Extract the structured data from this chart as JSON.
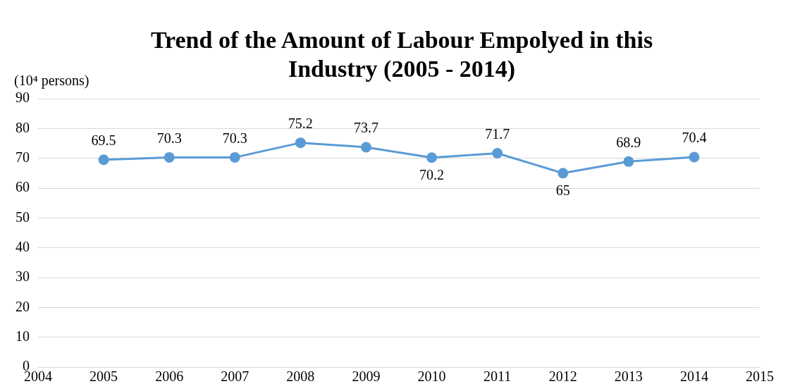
{
  "chart_data": {
    "type": "line",
    "title": "Trend of the Amount of Labour Empolyed in this Industry (2005 - 2014)",
    "ylabel": "(10⁴ persons)",
    "x": [
      2005,
      2006,
      2007,
      2008,
      2009,
      2010,
      2011,
      2012,
      2013,
      2014
    ],
    "series": [
      {
        "color": "#5b9bd5",
        "values": [
          69.5,
          70.3,
          70.3,
          75.2,
          73.7,
          70.2,
          71.7,
          65,
          68.9,
          70.4
        ]
      }
    ],
    "xlim": [
      2004,
      2015
    ],
    "xticks": [
      2004,
      2005,
      2006,
      2007,
      2008,
      2009,
      2010,
      2011,
      2012,
      2013,
      2014,
      2015
    ],
    "ylim": [
      0,
      90
    ],
    "yticks": [
      0,
      10,
      20,
      30,
      40,
      50,
      60,
      70,
      80,
      90
    ],
    "grid": "y",
    "legend": false,
    "marker": "circle",
    "line_style": "solid",
    "data_labels": true
  }
}
